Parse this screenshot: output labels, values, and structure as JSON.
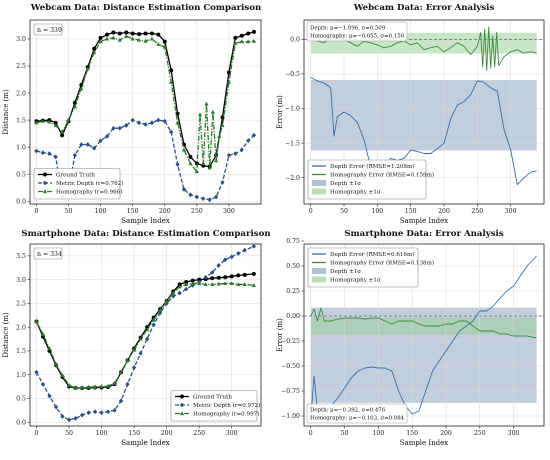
{
  "chart_data": [
    {
      "id": "p1",
      "type": "line",
      "title": "Webcam Data: Distance Estimation Comparison",
      "xlabel": "Sample Index",
      "ylabel": "Distance (m)",
      "xlim": [
        -10,
        350
      ],
      "ylim": [
        -0.05,
        3.35
      ],
      "xticks": [
        0,
        50,
        100,
        150,
        200,
        250,
        300
      ],
      "yticks": [
        0.0,
        0.5,
        1.0,
        1.5,
        2.0,
        2.5,
        3.0
      ],
      "ytick_labels": [
        "0.0",
        "0.5",
        "1.0",
        "1.5",
        "2.0",
        "2.5",
        "3.0"
      ],
      "grid": true,
      "annotation": "n = 339",
      "legend": {
        "position": "bottom-left",
        "entries": [
          "Ground Truth",
          "Metric Depth (r=0.762)",
          "Homography (r=0.966)"
        ]
      },
      "series": [
        {
          "name": "Ground Truth",
          "color": "#000000",
          "style": "solid-circle",
          "x": [
            0,
            10,
            20,
            30,
            40,
            50,
            60,
            70,
            80,
            90,
            100,
            110,
            120,
            130,
            140,
            150,
            160,
            170,
            180,
            190,
            200,
            210,
            220,
            230,
            240,
            250,
            260,
            270,
            280,
            290,
            300,
            310,
            320,
            330,
            339
          ],
          "y": [
            1.48,
            1.49,
            1.5,
            1.45,
            1.22,
            1.48,
            1.82,
            2.15,
            2.48,
            2.82,
            3.02,
            3.08,
            3.12,
            3.1,
            3.12,
            3.1,
            3.09,
            3.1,
            3.1,
            3.08,
            2.95,
            2.42,
            1.62,
            1.05,
            0.82,
            0.7,
            0.66,
            0.64,
            0.85,
            1.55,
            2.38,
            3.02,
            3.06,
            3.1,
            3.13
          ]
        },
        {
          "name": "Metric Depth (r=0.762)",
          "color": "#2a4f85",
          "style": "dashed-diamond",
          "x": [
            0,
            10,
            20,
            30,
            40,
            50,
            60,
            70,
            80,
            90,
            100,
            110,
            120,
            130,
            140,
            150,
            160,
            170,
            180,
            190,
            200,
            210,
            220,
            230,
            240,
            250,
            260,
            270,
            280,
            290,
            300,
            310,
            320,
            330,
            339
          ],
          "y": [
            0.93,
            0.9,
            0.88,
            0.82,
            0.08,
            0.22,
            0.85,
            1.05,
            1.05,
            0.98,
            1.12,
            1.2,
            1.35,
            1.35,
            1.4,
            1.5,
            1.45,
            1.42,
            1.45,
            1.5,
            1.48,
            1.28,
            0.68,
            0.22,
            0.12,
            0.08,
            0.05,
            0.03,
            0.08,
            0.35,
            0.85,
            0.88,
            0.95,
            1.12,
            1.22
          ]
        },
        {
          "name": "Homography (r=0.966)",
          "color": "#2d7a2d",
          "style": "dashdot-triangle",
          "x": [
            0,
            10,
            20,
            30,
            40,
            50,
            60,
            70,
            80,
            90,
            100,
            110,
            120,
            130,
            140,
            150,
            160,
            170,
            180,
            190,
            200,
            210,
            220,
            230,
            240,
            250,
            255,
            260,
            265,
            270,
            275,
            280,
            285,
            290,
            300,
            310,
            320,
            330,
            339
          ],
          "y": [
            1.45,
            1.48,
            1.47,
            1.4,
            1.28,
            1.5,
            1.75,
            2.08,
            2.45,
            2.75,
            2.95,
            3.0,
            3.02,
            2.98,
            3.05,
            3.0,
            2.98,
            2.96,
            3.0,
            2.9,
            2.85,
            2.2,
            1.45,
            0.95,
            0.7,
            0.55,
            1.6,
            0.7,
            1.8,
            0.62,
            1.65,
            0.75,
            1.2,
            1.4,
            2.2,
            2.92,
            2.95,
            2.95,
            2.96
          ]
        }
      ]
    },
    {
      "id": "p2",
      "type": "line",
      "title": "Webcam Data: Error Analysis",
      "xlabel": "Sample Index",
      "ylabel": "Error (m)",
      "xlim": [
        -10,
        350
      ],
      "ylim": [
        -2.38,
        0.28
      ],
      "xticks": [
        0,
        50,
        100,
        150,
        200,
        250,
        300
      ],
      "yticks": [
        0.0,
        -0.5,
        -1.0,
        -1.5,
        -2.0
      ],
      "ytick_labels": [
        "0.0",
        "−0.5",
        "−1.0",
        "−1.5",
        "−2.0"
      ],
      "grid": true,
      "stats_text": [
        "Depth: μ=−1.096, σ=0.509",
        "Homography: μ=−0.055, σ=0.150"
      ],
      "bands": [
        {
          "name": "Depth ±1σ",
          "color": "#8fa6c3",
          "range": [
            -1.605,
            -0.587
          ]
        },
        {
          "name": "Homography ±1σ",
          "color": "#9dcf9a",
          "range": [
            -0.205,
            0.095
          ]
        }
      ],
      "legend": {
        "position": "bottom-left",
        "entries": [
          "Depth Error (RMSE=1.208m)",
          "Homography Error (RMSE=0.159m)",
          "Depth ±1σ",
          "Homography ±1σ"
        ]
      },
      "series": [
        {
          "name": "Depth Error (RMSE=1.208m)",
          "color": "#3b6ea5",
          "x": [
            0,
            10,
            20,
            30,
            35,
            40,
            50,
            60,
            70,
            80,
            90,
            100,
            110,
            120,
            130,
            140,
            150,
            160,
            170,
            180,
            190,
            200,
            210,
            220,
            230,
            240,
            250,
            260,
            270,
            280,
            290,
            300,
            310,
            320,
            330,
            339
          ],
          "y": [
            -0.55,
            -0.6,
            -0.63,
            -0.7,
            -1.4,
            -1.12,
            -1.05,
            -1.1,
            -1.2,
            -1.45,
            -1.85,
            -1.9,
            -1.85,
            -1.72,
            -1.75,
            -1.72,
            -1.6,
            -1.62,
            -1.65,
            -1.65,
            -1.58,
            -1.5,
            -1.15,
            -0.95,
            -0.9,
            -0.8,
            -0.6,
            -0.62,
            -0.7,
            -0.75,
            -1.3,
            -1.6,
            -2.1,
            -2.0,
            -1.92,
            -1.9
          ]
        },
        {
          "name": "Homography Error (RMSE=0.159m)",
          "color": "#3d8c3d",
          "x": [
            0,
            10,
            20,
            30,
            40,
            50,
            60,
            70,
            80,
            90,
            100,
            110,
            120,
            130,
            140,
            150,
            160,
            170,
            180,
            190,
            200,
            210,
            220,
            230,
            240,
            250,
            255,
            258,
            261,
            264,
            267,
            270,
            273,
            276,
            279,
            282,
            290,
            300,
            310,
            320,
            330,
            339
          ],
          "y": [
            0.0,
            -0.02,
            -0.05,
            0.02,
            0.06,
            0.0,
            -0.05,
            -0.1,
            -0.03,
            -0.05,
            -0.08,
            -0.12,
            -0.1,
            -0.05,
            -0.02,
            -0.08,
            -0.05,
            -0.15,
            -0.12,
            -0.1,
            -0.18,
            -0.12,
            -0.05,
            -0.1,
            -0.22,
            -0.1,
            0.1,
            -0.4,
            0.15,
            -0.45,
            0.18,
            -0.42,
            0.05,
            -0.4,
            0.1,
            -0.38,
            -0.25,
            -0.18,
            -0.15,
            -0.2,
            -0.18,
            -0.2
          ]
        }
      ]
    },
    {
      "id": "p3",
      "type": "line",
      "title": "Smartphone Data: Distance Estimation Comparison",
      "xlabel": "Sample Index",
      "ylabel": "Distance (m)",
      "xlim": [
        -10,
        345
      ],
      "ylim": [
        -0.08,
        3.75
      ],
      "xticks": [
        0,
        50,
        100,
        150,
        200,
        250,
        300
      ],
      "yticks": [
        0.0,
        0.5,
        1.0,
        1.5,
        2.0,
        2.5,
        3.0,
        3.5
      ],
      "ytick_labels": [
        "0.0",
        "0.5",
        "1.0",
        "1.5",
        "2.0",
        "2.5",
        "3.0",
        "3.5"
      ],
      "grid": true,
      "annotation": "n = 334",
      "legend": {
        "position": "bottom-right",
        "entries": [
          "Ground Truth",
          "Metric Depth (r=0.972)",
          "Homography (r=0.997)"
        ]
      },
      "series": [
        {
          "name": "Ground Truth",
          "color": "#000000",
          "style": "solid-circle",
          "x": [
            0,
            10,
            20,
            30,
            40,
            50,
            60,
            70,
            80,
            90,
            100,
            110,
            120,
            130,
            140,
            150,
            160,
            170,
            180,
            190,
            200,
            210,
            220,
            230,
            240,
            250,
            260,
            270,
            280,
            290,
            300,
            310,
            320,
            334
          ],
          "y": [
            2.12,
            1.8,
            1.5,
            1.2,
            0.95,
            0.75,
            0.72,
            0.72,
            0.72,
            0.73,
            0.73,
            0.74,
            0.8,
            1.05,
            1.3,
            1.55,
            1.78,
            2.0,
            2.2,
            2.38,
            2.55,
            2.75,
            2.9,
            2.95,
            2.98,
            3.0,
            3.01,
            3.03,
            3.04,
            3.05,
            3.07,
            3.09,
            3.1,
            3.12
          ]
        },
        {
          "name": "Metric Depth (r=0.972)",
          "color": "#2a4f85",
          "style": "dashed-diamond",
          "x": [
            0,
            10,
            20,
            30,
            40,
            50,
            60,
            70,
            80,
            90,
            100,
            110,
            120,
            130,
            140,
            150,
            160,
            170,
            180,
            190,
            200,
            210,
            220,
            230,
            240,
            250,
            260,
            270,
            280,
            290,
            300,
            310,
            320,
            334
          ],
          "y": [
            1.05,
            0.8,
            0.55,
            0.32,
            0.12,
            0.05,
            0.08,
            0.15,
            0.2,
            0.22,
            0.2,
            0.22,
            0.25,
            0.45,
            0.8,
            1.15,
            1.45,
            1.75,
            2.05,
            2.3,
            2.5,
            2.65,
            2.72,
            2.8,
            2.88,
            2.95,
            3.05,
            3.15,
            3.3,
            3.42,
            3.48,
            3.55,
            3.62,
            3.7
          ]
        },
        {
          "name": "Homography (r=0.997)",
          "color": "#2d7a2d",
          "style": "dashdot-triangle",
          "x": [
            0,
            10,
            20,
            30,
            40,
            50,
            60,
            70,
            80,
            90,
            100,
            110,
            120,
            130,
            140,
            150,
            160,
            170,
            180,
            190,
            200,
            210,
            220,
            230,
            240,
            250,
            260,
            270,
            280,
            290,
            300,
            310,
            320,
            334
          ],
          "y": [
            2.12,
            1.85,
            1.55,
            1.22,
            0.98,
            0.78,
            0.72,
            0.73,
            0.74,
            0.74,
            0.75,
            0.76,
            0.82,
            1.05,
            1.3,
            1.52,
            1.75,
            1.95,
            2.15,
            2.35,
            2.55,
            2.72,
            2.85,
            2.9,
            2.92,
            2.92,
            2.9,
            2.9,
            2.91,
            2.92,
            2.92,
            2.9,
            2.9,
            2.88
          ]
        }
      ]
    },
    {
      "id": "p4",
      "type": "line",
      "title": "Smartphone Data: Error Analysis",
      "xlabel": "Sample Index",
      "ylabel": "Error (m)",
      "xlim": [
        -10,
        345
      ],
      "ylim": [
        -1.1,
        0.72
      ],
      "xticks": [
        0,
        50,
        100,
        150,
        200,
        250,
        300
      ],
      "yticks": [
        0.75,
        0.5,
        0.25,
        0.0,
        -0.25,
        -0.5,
        -0.75,
        -1.0
      ],
      "ytick_labels": [
        "0.75",
        "0.50",
        "0.25",
        "0.00",
        "−0.25",
        "−0.50",
        "−0.75",
        "−1.00"
      ],
      "grid": true,
      "stats_text": [
        "Depth: μ=−0.392, σ=0.476",
        "Homography: μ=−0.103, σ=0.084"
      ],
      "bands": [
        {
          "name": "Depth ±1σ",
          "color": "#8fa6c3",
          "range": [
            -0.868,
            0.084
          ]
        },
        {
          "name": "Homography ±1σ",
          "color": "#9dcf9a",
          "range": [
            -0.187,
            -0.019
          ]
        }
      ],
      "legend": {
        "position": "top-left",
        "entries": [
          "Depth Error (RMSE=0.616m)",
          "Homography Error (RMSE=0.138m)",
          "Depth ±1σ",
          "Homography ±1σ"
        ]
      },
      "series": [
        {
          "name": "Depth Error (RMSE=0.616m)",
          "color": "#3b6ea5",
          "x": [
            0,
            5,
            10,
            20,
            30,
            40,
            50,
            60,
            70,
            80,
            90,
            100,
            110,
            120,
            130,
            140,
            150,
            160,
            170,
            180,
            190,
            200,
            210,
            220,
            230,
            240,
            250,
            260,
            270,
            280,
            290,
            300,
            310,
            320,
            334
          ],
          "y": [
            -1.02,
            -0.6,
            -0.95,
            -0.98,
            -0.9,
            -0.82,
            -0.72,
            -0.62,
            -0.55,
            -0.52,
            -0.51,
            -0.52,
            -0.52,
            -0.55,
            -0.75,
            -0.9,
            -0.98,
            -0.95,
            -0.75,
            -0.55,
            -0.45,
            -0.35,
            -0.25,
            -0.15,
            -0.1,
            -0.05,
            0.05,
            0.05,
            0.1,
            0.18,
            0.25,
            0.3,
            0.4,
            0.5,
            0.6
          ]
        },
        {
          "name": "Homography Error (RMSE=0.138m)",
          "color": "#3d8c3d",
          "x": [
            0,
            5,
            10,
            15,
            20,
            30,
            40,
            50,
            60,
            70,
            80,
            90,
            100,
            110,
            120,
            130,
            140,
            150,
            160,
            170,
            180,
            190,
            200,
            210,
            220,
            230,
            240,
            250,
            260,
            270,
            280,
            290,
            300,
            310,
            320,
            334
          ],
          "y": [
            0.0,
            0.07,
            -0.05,
            0.08,
            -0.05,
            -0.05,
            -0.03,
            -0.02,
            -0.02,
            -0.02,
            -0.03,
            -0.02,
            -0.02,
            -0.05,
            -0.08,
            -0.05,
            -0.05,
            -0.05,
            -0.08,
            -0.1,
            -0.1,
            -0.1,
            -0.08,
            -0.08,
            -0.05,
            -0.05,
            -0.1,
            -0.15,
            -0.15,
            -0.15,
            -0.18,
            -0.18,
            -0.2,
            -0.2,
            -0.2,
            -0.22
          ]
        }
      ]
    }
  ]
}
